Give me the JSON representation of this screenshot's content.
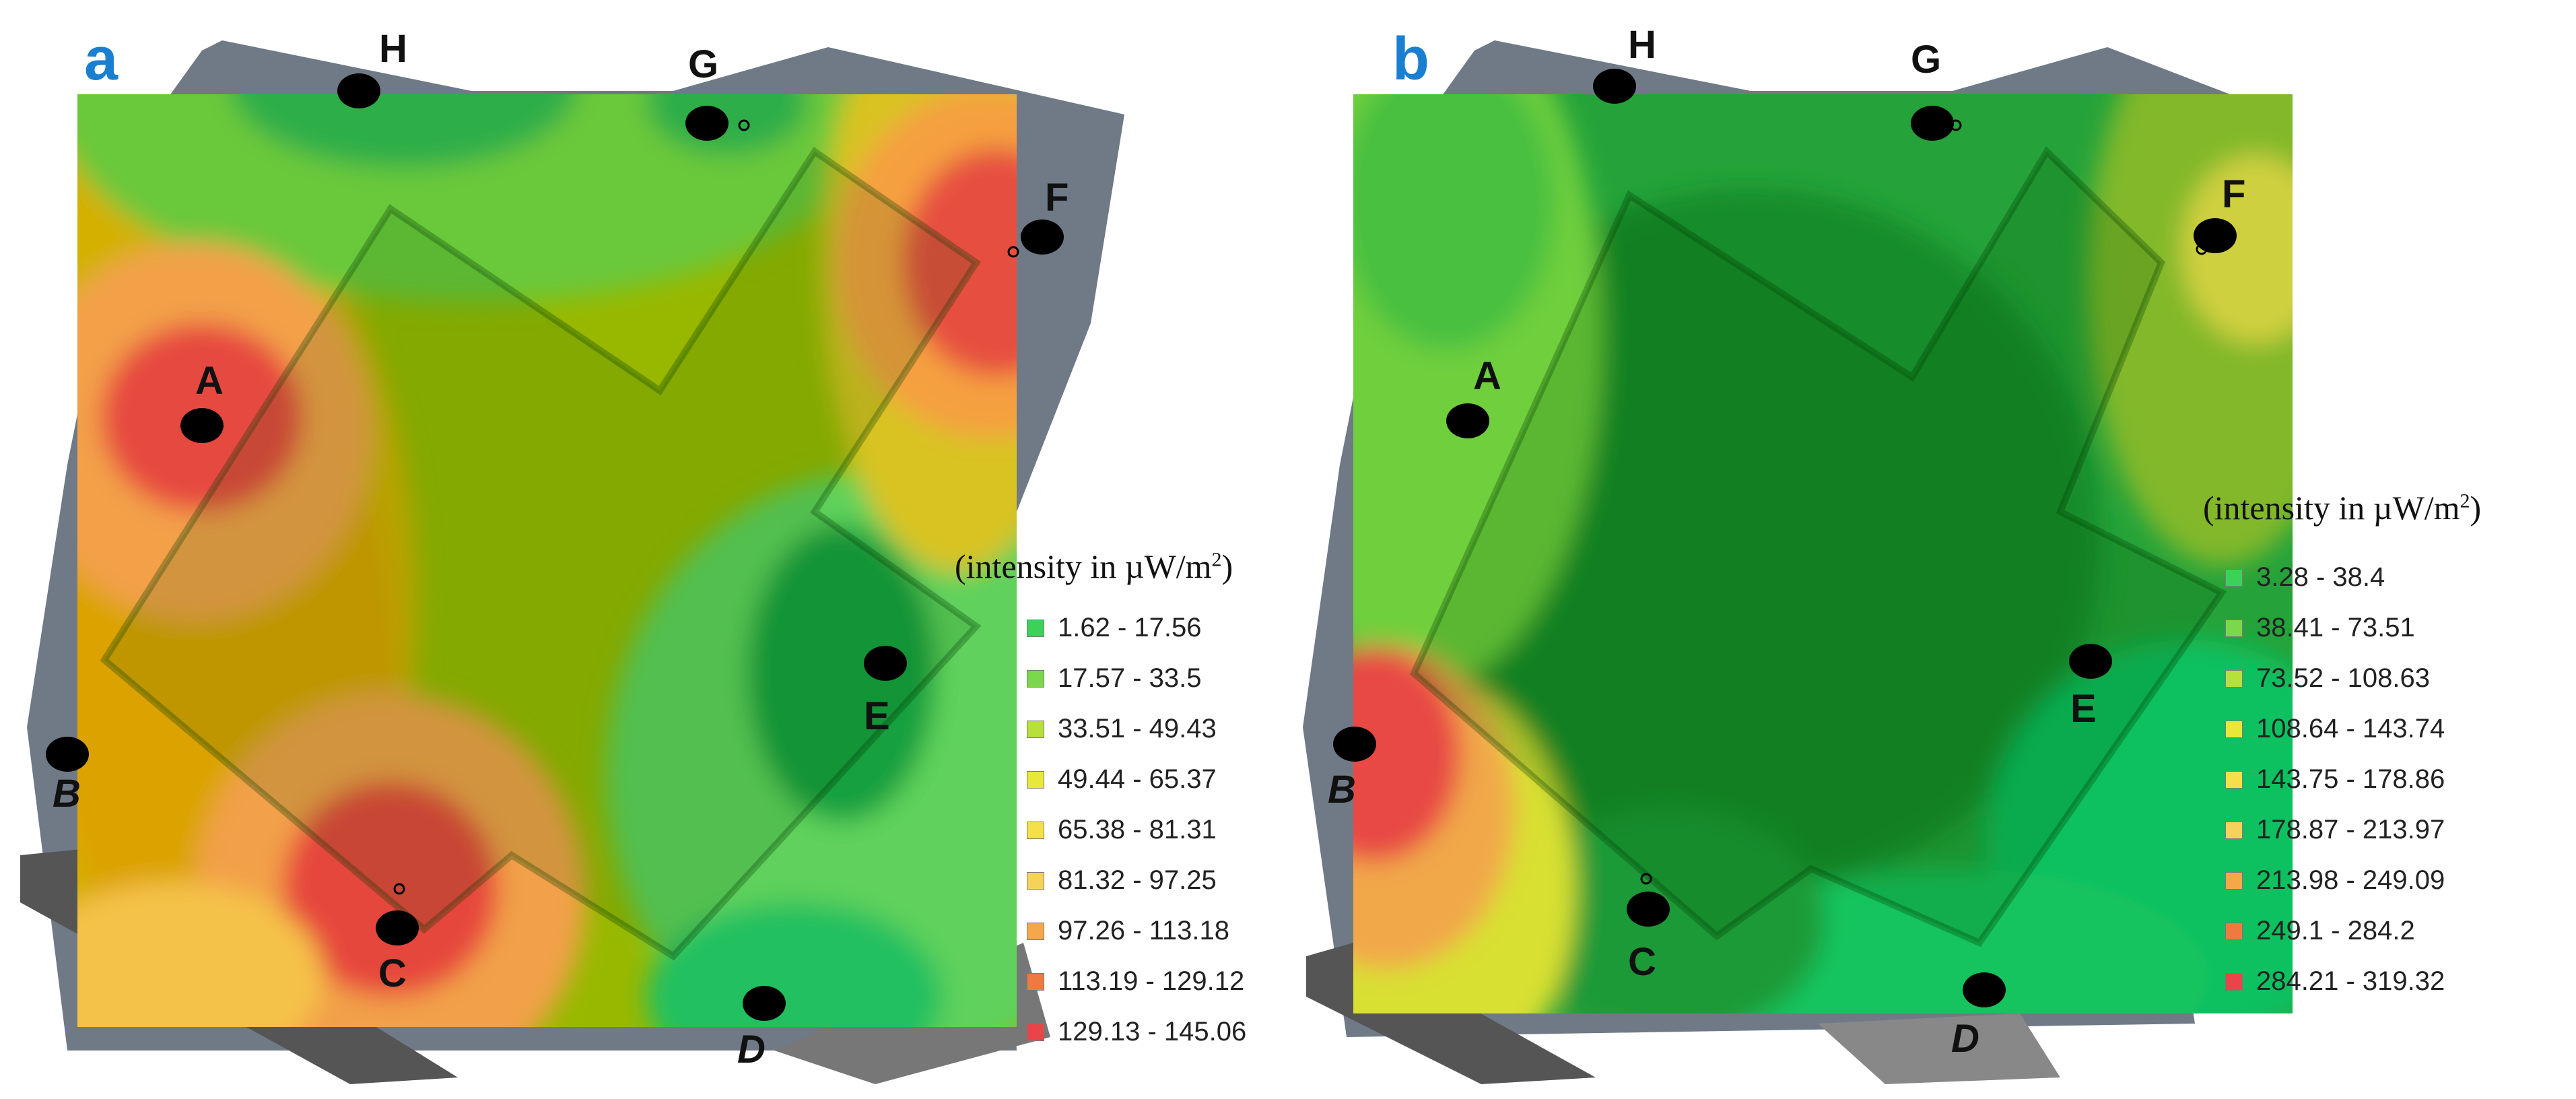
{
  "panels": [
    {
      "letter": "a",
      "legend_title": "(intensity in µW/m",
      "legend_title_sup": "2",
      "legend_title_tail": ")",
      "legend": [
        {
          "range": "1.62 - 17.56",
          "color": "#3cd25a"
        },
        {
          "range": "17.57 - 33.5",
          "color": "#7bd84a"
        },
        {
          "range": "33.51 - 49.43",
          "color": "#b8e03a"
        },
        {
          "range": "49.44 - 65.37",
          "color": "#e8e83a"
        },
        {
          "range": "65.38 - 81.31",
          "color": "#f5e04a"
        },
        {
          "range": "81.32 - 97.25",
          "color": "#f7d25a"
        },
        {
          "range": "97.26 - 113.18",
          "color": "#f5a84a"
        },
        {
          "range": "113.19 - 129.12",
          "color": "#ee7a42"
        },
        {
          "range": "129.13 - 145.06",
          "color": "#e8444a"
        }
      ],
      "points": [
        "A",
        "B",
        "C",
        "D",
        "E",
        "F",
        "G",
        "H"
      ]
    },
    {
      "letter": "b",
      "legend_title": "(intensity in µW/m",
      "legend_title_sup": "2",
      "legend_title_tail": ")",
      "legend": [
        {
          "range": "3.28 - 38.4",
          "color": "#3cd25a"
        },
        {
          "range": "38.41 - 73.51",
          "color": "#7bd84a"
        },
        {
          "range": "73.52 - 108.63",
          "color": "#b8e03a"
        },
        {
          "range": "108.64 - 143.74",
          "color": "#e8e83a"
        },
        {
          "range": "143.75 - 178.86",
          "color": "#f5e04a"
        },
        {
          "range": "178.87 - 213.97",
          "color": "#f7d25a"
        },
        {
          "range": "213.98 - 249.09",
          "color": "#f5a84a"
        },
        {
          "range": "249.1 - 284.2",
          "color": "#ee7a42"
        },
        {
          "range": "284.21 - 319.32",
          "color": "#e8444a"
        }
      ],
      "points": [
        "A",
        "B",
        "C",
        "D",
        "E",
        "F",
        "G",
        "H"
      ]
    }
  ]
}
